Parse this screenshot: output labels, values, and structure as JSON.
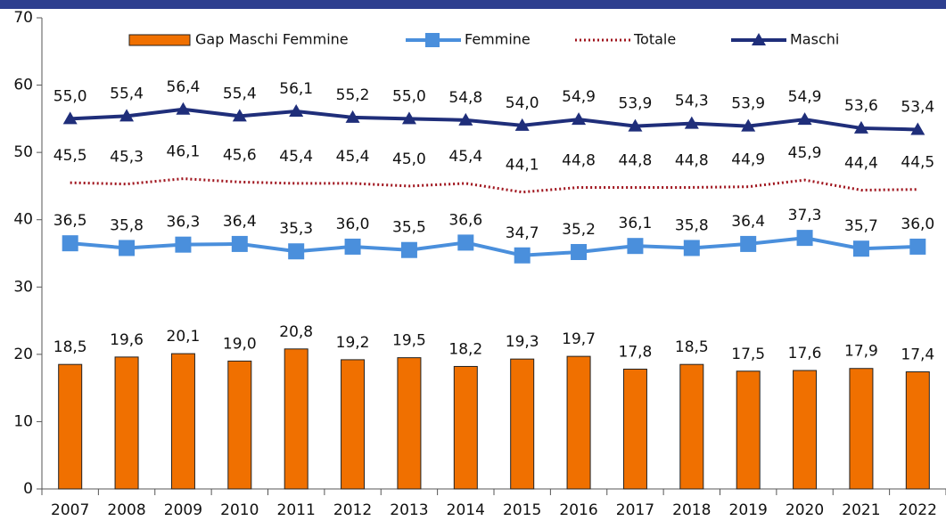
{
  "chart_data": {
    "type": "combo",
    "categories": [
      "2007",
      "2008",
      "2009",
      "2010",
      "2011",
      "2012",
      "2013",
      "2014",
      "2015",
      "2016",
      "2017",
      "2018",
      "2019",
      "2020",
      "2021",
      "2022"
    ],
    "ylim": [
      0,
      70
    ],
    "yticks": [
      0,
      10,
      20,
      30,
      40,
      50,
      60,
      70
    ],
    "legend": "top",
    "series": [
      {
        "name": "Gap Maschi Femmine",
        "type": "bar",
        "color": "#f07000",
        "values": [
          18.5,
          19.6,
          20.1,
          19.0,
          20.8,
          19.2,
          19.5,
          18.2,
          19.3,
          19.7,
          17.8,
          18.5,
          17.5,
          17.6,
          17.9,
          17.4
        ],
        "value_labels": [
          "18,5",
          "19,6",
          "20,1",
          "19,0",
          "20,8",
          "19,2",
          "19,5",
          "18,2",
          "19,3",
          "19,7",
          "17,8",
          "18,5",
          "17,5",
          "17,6",
          "17,9",
          "17,4"
        ]
      },
      {
        "name": "Femmine",
        "type": "line",
        "marker": "square",
        "color": "#4a8fdc",
        "values": [
          36.5,
          35.8,
          36.3,
          36.4,
          35.3,
          36.0,
          35.5,
          36.6,
          34.7,
          35.2,
          36.1,
          35.8,
          36.4,
          37.3,
          35.7,
          36.0
        ],
        "value_labels": [
          "36,5",
          "35,8",
          "36,3",
          "36,4",
          "35,3",
          "36,0",
          "35,5",
          "36,6",
          "34,7",
          "35,2",
          "36,1",
          "35,8",
          "36,4",
          "37,3",
          "35,7",
          "36,0"
        ]
      },
      {
        "name": "Totale",
        "type": "line",
        "marker": "none",
        "dotted": true,
        "color": "#a0151e",
        "values": [
          45.5,
          45.3,
          46.1,
          45.6,
          45.4,
          45.4,
          45.0,
          45.4,
          44.1,
          44.8,
          44.8,
          44.8,
          44.9,
          45.9,
          44.4,
          44.5
        ],
        "value_labels": [
          "45,5",
          "45,3",
          "46,1",
          "45,6",
          "45,4",
          "45,4",
          "45,0",
          "45,4",
          "44,1",
          "44,8",
          "44,8",
          "44,8",
          "44,9",
          "45,9",
          "44,4",
          "44,5"
        ]
      },
      {
        "name": "Maschi",
        "type": "line",
        "marker": "triangle",
        "color": "#1f2e7a",
        "values": [
          55.0,
          55.4,
          56.4,
          55.4,
          56.1,
          55.2,
          55.0,
          54.8,
          54.0,
          54.9,
          53.9,
          54.3,
          53.9,
          54.9,
          53.6,
          53.4
        ],
        "value_labels": [
          "55,0",
          "55,4",
          "56,4",
          "55,4",
          "56,1",
          "55,2",
          "55,0",
          "54,8",
          "54,0",
          "54,9",
          "53,9",
          "54,3",
          "53,9",
          "54,9",
          "53,6",
          "53,4"
        ]
      }
    ]
  }
}
